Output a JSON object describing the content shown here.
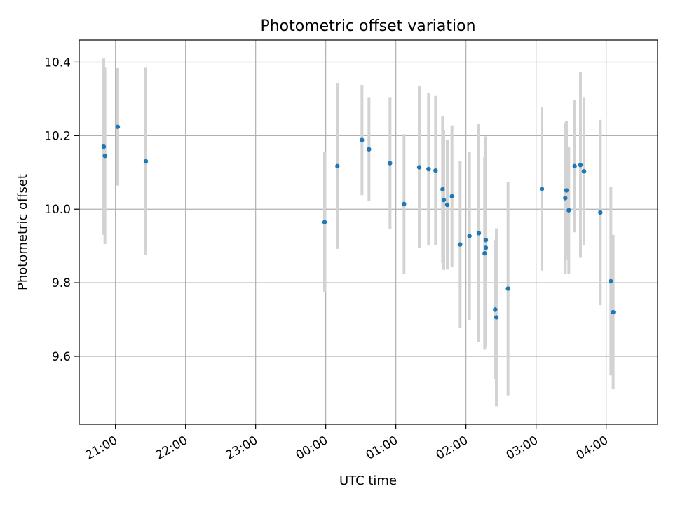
{
  "chart_data": {
    "type": "scatter",
    "title": "Photometric offset variation",
    "xlabel": "UTC time",
    "ylabel": "Photometric offset",
    "x_axis": {
      "type": "time",
      "range": [
        "20:29",
        "04:44"
      ],
      "ticks": [
        "21:00",
        "22:00",
        "23:00",
        "00:00",
        "01:00",
        "02:00",
        "03:00",
        "04:00"
      ],
      "tick_rotation_deg": 30
    },
    "y_axis": {
      "range": [
        9.415,
        10.46
      ],
      "ticks": [
        "9.6",
        "9.8",
        "10.0",
        "10.2",
        "10.4"
      ]
    },
    "grid": true,
    "legend": "none",
    "colors": {
      "points": "#1f77b4",
      "errorbars": "#d3d3d3",
      "grid": "#b0b0b0"
    },
    "series": [
      {
        "points": [
          {
            "t": "20:50",
            "y": 10.17,
            "err": 0.24
          },
          {
            "t": "20:51",
            "y": 10.145,
            "err": 0.24
          },
          {
            "t": "21:02",
            "y": 10.224,
            "err": 0.16
          },
          {
            "t": "21:26",
            "y": 10.13,
            "err": 0.255
          },
          {
            "t": "23:59",
            "y": 9.965,
            "err": 0.19
          },
          {
            "t": "00:10",
            "y": 10.117,
            "err": 0.225
          },
          {
            "t": "00:31",
            "y": 10.188,
            "err": 0.15
          },
          {
            "t": "00:37",
            "y": 10.163,
            "err": 0.14
          },
          {
            "t": "00:55",
            "y": 10.125,
            "err": 0.178
          },
          {
            "t": "01:07",
            "y": 10.014,
            "err": 0.19
          },
          {
            "t": "01:20",
            "y": 10.114,
            "err": 0.22
          },
          {
            "t": "01:28",
            "y": 10.109,
            "err": 0.208
          },
          {
            "t": "01:34",
            "y": 10.105,
            "err": 0.203
          },
          {
            "t": "01:40",
            "y": 10.054,
            "err": 0.2
          },
          {
            "t": "01:41",
            "y": 10.025,
            "err": 0.19
          },
          {
            "t": "01:44",
            "y": 10.012,
            "err": 0.176
          },
          {
            "t": "01:48",
            "y": 10.035,
            "err": 0.193
          },
          {
            "t": "01:55",
            "y": 9.904,
            "err": 0.228
          },
          {
            "t": "02:03",
            "y": 9.927,
            "err": 0.228
          },
          {
            "t": "02:11",
            "y": 9.935,
            "err": 0.296
          },
          {
            "t": "02:16",
            "y": 9.88,
            "err": 0.262
          },
          {
            "t": "02:17",
            "y": 9.895,
            "err": 0.27
          },
          {
            "t": "02:17",
            "y": 9.916,
            "err": 0.282
          },
          {
            "t": "02:25",
            "y": 9.727,
            "err": 0.19
          },
          {
            "t": "02:26",
            "y": 9.706,
            "err": 0.242
          },
          {
            "t": "02:36",
            "y": 9.784,
            "err": 0.29
          },
          {
            "t": "03:05",
            "y": 10.055,
            "err": 0.222
          },
          {
            "t": "03:25",
            "y": 10.03,
            "err": 0.206
          },
          {
            "t": "03:26",
            "y": 10.051,
            "err": 0.188
          },
          {
            "t": "03:28",
            "y": 9.997,
            "err": 0.172
          },
          {
            "t": "03:33",
            "y": 10.117,
            "err": 0.18
          },
          {
            "t": "03:38",
            "y": 10.12,
            "err": 0.252
          },
          {
            "t": "03:41",
            "y": 10.103,
            "err": 0.2
          },
          {
            "t": "03:55",
            "y": 9.991,
            "err": 0.252
          },
          {
            "t": "04:04",
            "y": 9.804,
            "err": 0.256
          },
          {
            "t": "04:06",
            "y": 9.72,
            "err": 0.21
          }
        ]
      }
    ]
  }
}
